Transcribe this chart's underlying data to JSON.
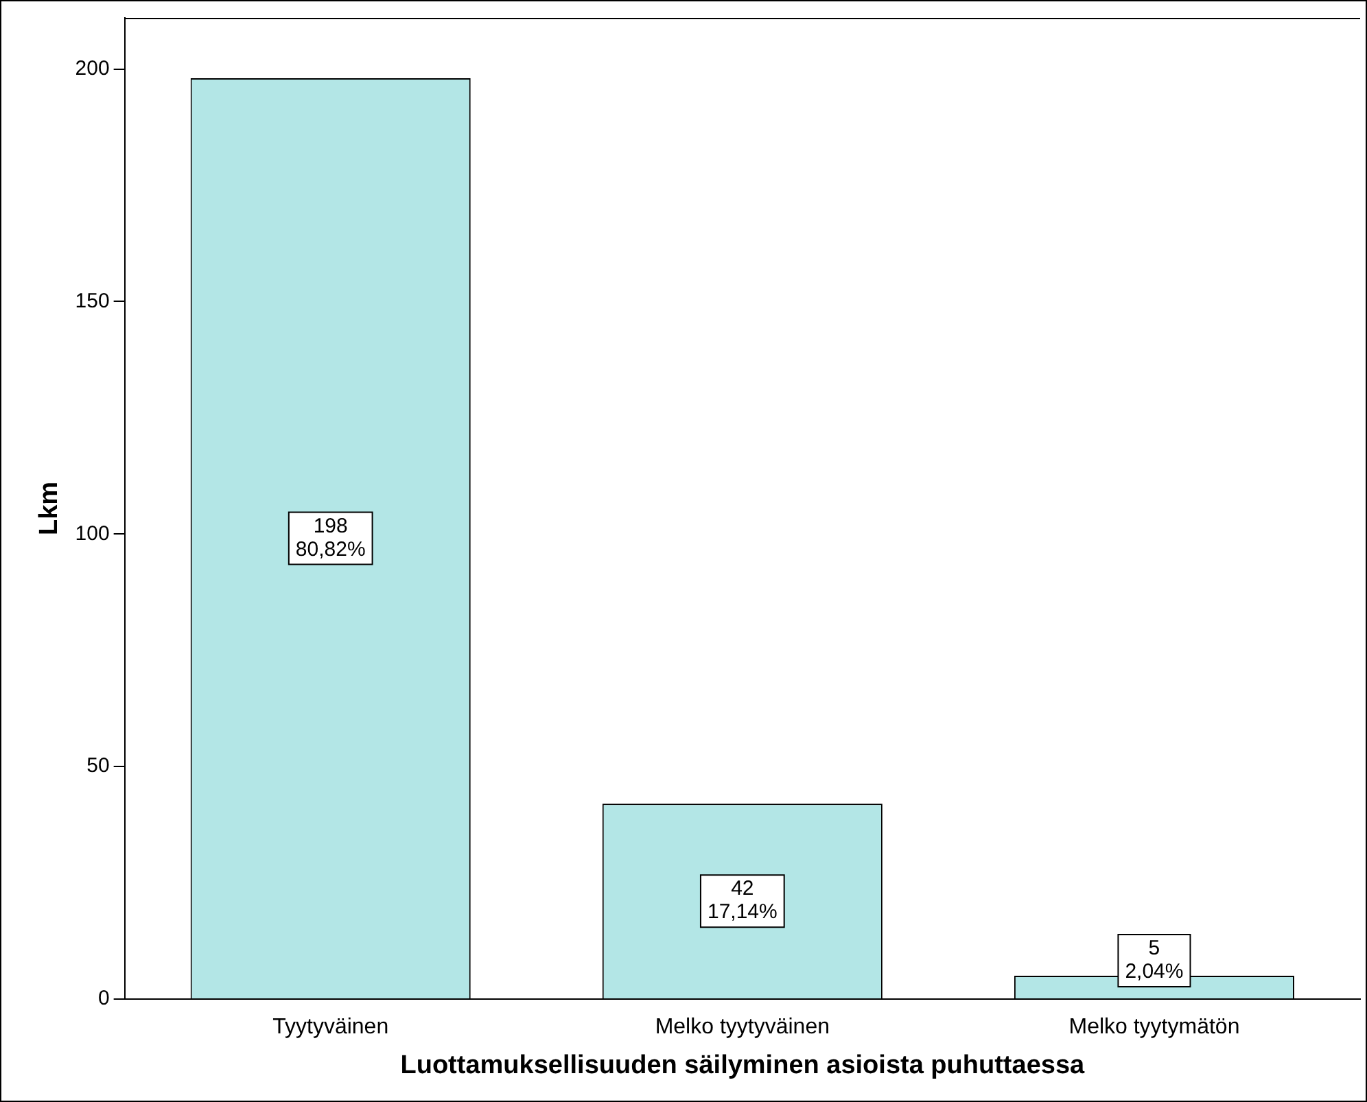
{
  "chart_data": {
    "type": "bar",
    "xlabel": "Luottamuksellisuuden säilyminen asioista puhuttaessa",
    "ylabel": "Lkm",
    "categories": [
      "Tyytyväinen",
      "Melko tyytyväinen",
      "Melko tyytymätön"
    ],
    "values": [
      198,
      42,
      5
    ],
    "color": "#b3e6e6",
    "value_labels": [
      "198\n80,82%",
      "42\n17,14%",
      "5\n2,04%"
    ],
    "ylim": [
      0,
      211
    ],
    "yticks": [
      0,
      50,
      100,
      150,
      200
    ],
    "grid": false,
    "legend": false
  }
}
